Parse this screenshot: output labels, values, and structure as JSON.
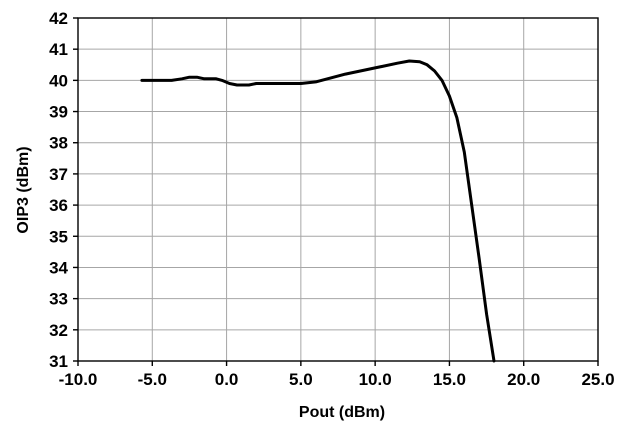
{
  "chart_data": {
    "type": "line",
    "title": "",
    "xlabel": "Pout (dBm)",
    "ylabel": "OIP3 (dBm)",
    "xlim": [
      -10,
      25
    ],
    "ylim": [
      31,
      42
    ],
    "xticks": [
      -10,
      -5,
      0,
      5,
      10,
      15,
      20,
      25
    ],
    "xtick_labels": [
      "-10.0",
      "-5.0",
      "0.0",
      "5.0",
      "10.0",
      "15.0",
      "20.0",
      "25.0"
    ],
    "yticks": [
      31,
      32,
      33,
      34,
      35,
      36,
      37,
      38,
      39,
      40,
      41,
      42
    ],
    "ytick_labels": [
      "31",
      "32",
      "33",
      "34",
      "35",
      "36",
      "37",
      "38",
      "39",
      "40",
      "41",
      "42"
    ],
    "grid": true,
    "legend": "none",
    "series": [
      {
        "color": "#000000",
        "x": [
          -5.7,
          -3.7,
          -3.0,
          -2.5,
          -2.0,
          -1.5,
          -0.7,
          -0.3,
          0.2,
          0.7,
          1.5,
          2.0,
          3.0,
          4.0,
          5.0,
          6.0,
          8.0,
          10.0,
          11.5,
          12.3,
          13.0,
          13.5,
          14.0,
          14.5,
          15.0,
          15.5,
          16.0,
          16.5,
          17.0,
          17.5,
          18.0
        ],
        "y": [
          40.0,
          40.0,
          40.05,
          40.1,
          40.1,
          40.05,
          40.05,
          40.0,
          39.9,
          39.85,
          39.85,
          39.9,
          39.9,
          39.9,
          39.9,
          39.95,
          40.2,
          40.4,
          40.55,
          40.62,
          40.6,
          40.5,
          40.3,
          40.0,
          39.5,
          38.8,
          37.7,
          36.0,
          34.3,
          32.5,
          31.0
        ]
      }
    ]
  }
}
